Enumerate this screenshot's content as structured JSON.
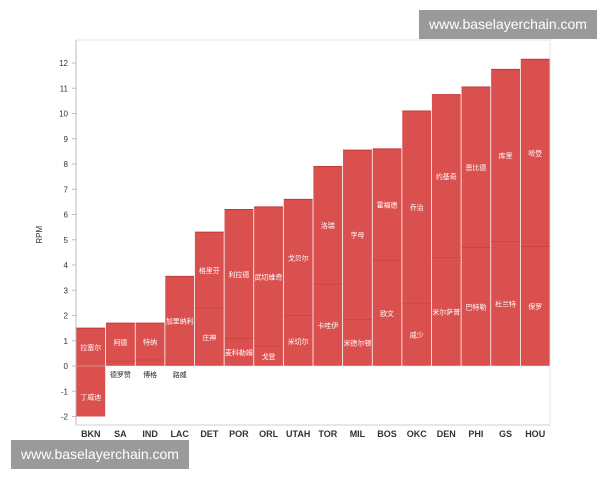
{
  "watermark_top": "www.baselayerchain.com",
  "watermark_bottom": "www.baselayerchain.com",
  "chart_data": {
    "type": "bar",
    "stacked": true,
    "ylabel": "RPM",
    "ylim": [
      -2,
      12.5
    ],
    "yticks": [
      -2,
      -1,
      0,
      1,
      2,
      3,
      4,
      5,
      6,
      7,
      8,
      9,
      10,
      11,
      12
    ],
    "bar_color": "#d9504e",
    "divider_color": "#c23a38",
    "categories": [
      "BKN",
      "SA",
      "IND",
      "LAC",
      "DET",
      "POR",
      "ORL",
      "UTAH",
      "TOR",
      "MIL",
      "BOS",
      "OKC",
      "DEN",
      "PHI",
      "GS",
      "HOU"
    ],
    "bars": [
      {
        "team": "BKN",
        "total": -0.5,
        "segments": [
          {
            "name": "拉塞尔",
            "value": 1.5
          },
          {
            "name": "丁威迪",
            "value": -2.0
          }
        ]
      },
      {
        "team": "SA",
        "total": 1.7,
        "segments": [
          {
            "name": "德罗赞",
            "value": 0.2
          },
          {
            "name": "阿德",
            "value": 1.5
          }
        ]
      },
      {
        "team": "IND",
        "total": 1.7,
        "segments": [
          {
            "name": "博格",
            "value": 0.25
          },
          {
            "name": "特纳",
            "value": 1.45
          }
        ]
      },
      {
        "team": "LAC",
        "total": 3.55,
        "segments": [
          {
            "name": "路威",
            "value": 0.05
          },
          {
            "name": "加里纳利",
            "value": 3.5
          }
        ]
      },
      {
        "team": "DET",
        "total": 5.3,
        "segments": [
          {
            "name": "庄神",
            "value": 2.3
          },
          {
            "name": "格里芬",
            "value": 3.0
          }
        ]
      },
      {
        "team": "POR",
        "total": 6.2,
        "segments": [
          {
            "name": "麦科勒姆",
            "value": 1.1
          },
          {
            "name": "利拉德",
            "value": 5.1
          }
        ]
      },
      {
        "team": "ORL",
        "total": 6.3,
        "segments": [
          {
            "name": "戈登",
            "value": 0.8
          },
          {
            "name": "武切维奇",
            "value": 5.5
          }
        ]
      },
      {
        "team": "UTAH",
        "total": 6.6,
        "segments": [
          {
            "name": "米切尔",
            "value": 2.0
          },
          {
            "name": "戈贝尔",
            "value": 4.6
          }
        ]
      },
      {
        "team": "TOR",
        "total": 7.9,
        "segments": [
          {
            "name": "卡哇伊",
            "value": 3.25
          },
          {
            "name": "洛瑞",
            "value": 4.65
          }
        ]
      },
      {
        "team": "MIL",
        "total": 8.55,
        "segments": [
          {
            "name": "米德尔顿",
            "value": 1.85
          },
          {
            "name": "字母",
            "value": 6.7
          }
        ]
      },
      {
        "team": "BOS",
        "total": 8.6,
        "segments": [
          {
            "name": "欧文",
            "value": 4.2
          },
          {
            "name": "霍福德",
            "value": 4.4
          }
        ]
      },
      {
        "team": "OKC",
        "total": 10.1,
        "segments": [
          {
            "name": "威少",
            "value": 2.5
          },
          {
            "name": "乔治",
            "value": 7.6
          }
        ]
      },
      {
        "team": "DEN",
        "total": 10.75,
        "segments": [
          {
            "name": "米尔萨普",
            "value": 4.3
          },
          {
            "name": "约基奇",
            "value": 6.45
          }
        ]
      },
      {
        "team": "PHI",
        "total": 11.05,
        "segments": [
          {
            "name": "巴特勒",
            "value": 4.7
          },
          {
            "name": "恩比德",
            "value": 6.35
          }
        ]
      },
      {
        "team": "GS",
        "total": 11.75,
        "segments": [
          {
            "name": "杜兰特",
            "value": 4.95
          },
          {
            "name": "库里",
            "value": 6.8
          }
        ]
      },
      {
        "team": "HOU",
        "total": 12.15,
        "segments": [
          {
            "name": "保罗",
            "value": 4.75
          },
          {
            "name": "哈登",
            "value": 7.4
          }
        ]
      }
    ]
  }
}
